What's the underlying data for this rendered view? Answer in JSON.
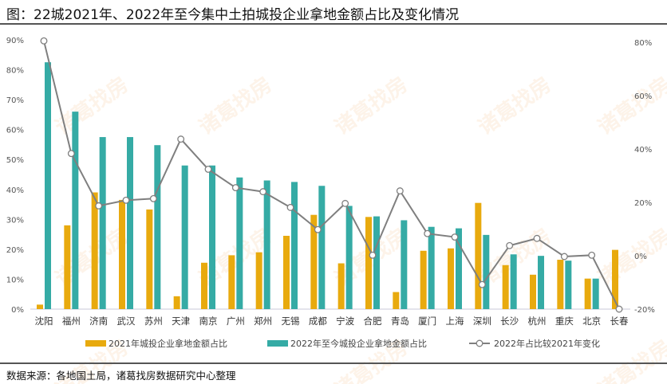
{
  "title": "图：22城2021年、2022年至今集中土拍城投企业拿地金额占比及变化情况",
  "source": "数据来源：各地国土局，诸葛找房数据研究中心整理",
  "watermark": "诸葛找房",
  "chart_data": {
    "type": "bar+line",
    "categories": [
      "沈阳",
      "福州",
      "济南",
      "武汉",
      "苏州",
      "天津",
      "南京",
      "广州",
      "郑州",
      "无锡",
      "成都",
      "宁波",
      "合肥",
      "青岛",
      "厦门",
      "上海",
      "深圳",
      "长沙",
      "杭州",
      "重庆",
      "北京",
      "长春"
    ],
    "series": [
      {
        "name": "2021年城投企业拿地金额占比",
        "type": "bar",
        "axis": "left",
        "color": "#E8AA0E",
        "values": [
          1.5,
          28,
          39,
          36.5,
          33.3,
          4.3,
          15.5,
          18,
          19,
          24.5,
          31.5,
          15.3,
          30.8,
          5.7,
          19.5,
          20.3,
          35.5,
          14.7,
          11.5,
          16.5,
          10.2,
          19.8
        ]
      },
      {
        "name": "2022年至今城投企业拿地金额占比",
        "type": "bar",
        "axis": "left",
        "color": "#35ABA5",
        "values": [
          82.5,
          66,
          57.5,
          57.5,
          54.8,
          48,
          48,
          44,
          43,
          42.5,
          41.2,
          34.5,
          31,
          29.7,
          27.5,
          27,
          24.8,
          18.3,
          17.8,
          16.2,
          10.2,
          0
        ]
      },
      {
        "name": "2022年占比较2021年变化",
        "type": "line",
        "axis": "right",
        "color": "#7F7F7F",
        "values": [
          80.5,
          38.3,
          18.7,
          20.8,
          21.4,
          43.7,
          32.4,
          25.5,
          24,
          18.1,
          9.8,
          19.6,
          0.2,
          24.3,
          8.3,
          7,
          -10.8,
          3.8,
          6.5,
          -0.3,
          0.2,
          -20
        ]
      }
    ],
    "y_left": {
      "range": [
        0,
        90
      ],
      "ticks": [
        "0%",
        "10%",
        "20%",
        "30%",
        "40%",
        "50%",
        "60%",
        "70%",
        "80%",
        "90%"
      ]
    },
    "y_right": {
      "range": [
        -20,
        80
      ],
      "ticks": [
        "-20%",
        "0%",
        "20%",
        "40%",
        "60%",
        "80%"
      ]
    },
    "grid": false,
    "legend": "bottom"
  }
}
